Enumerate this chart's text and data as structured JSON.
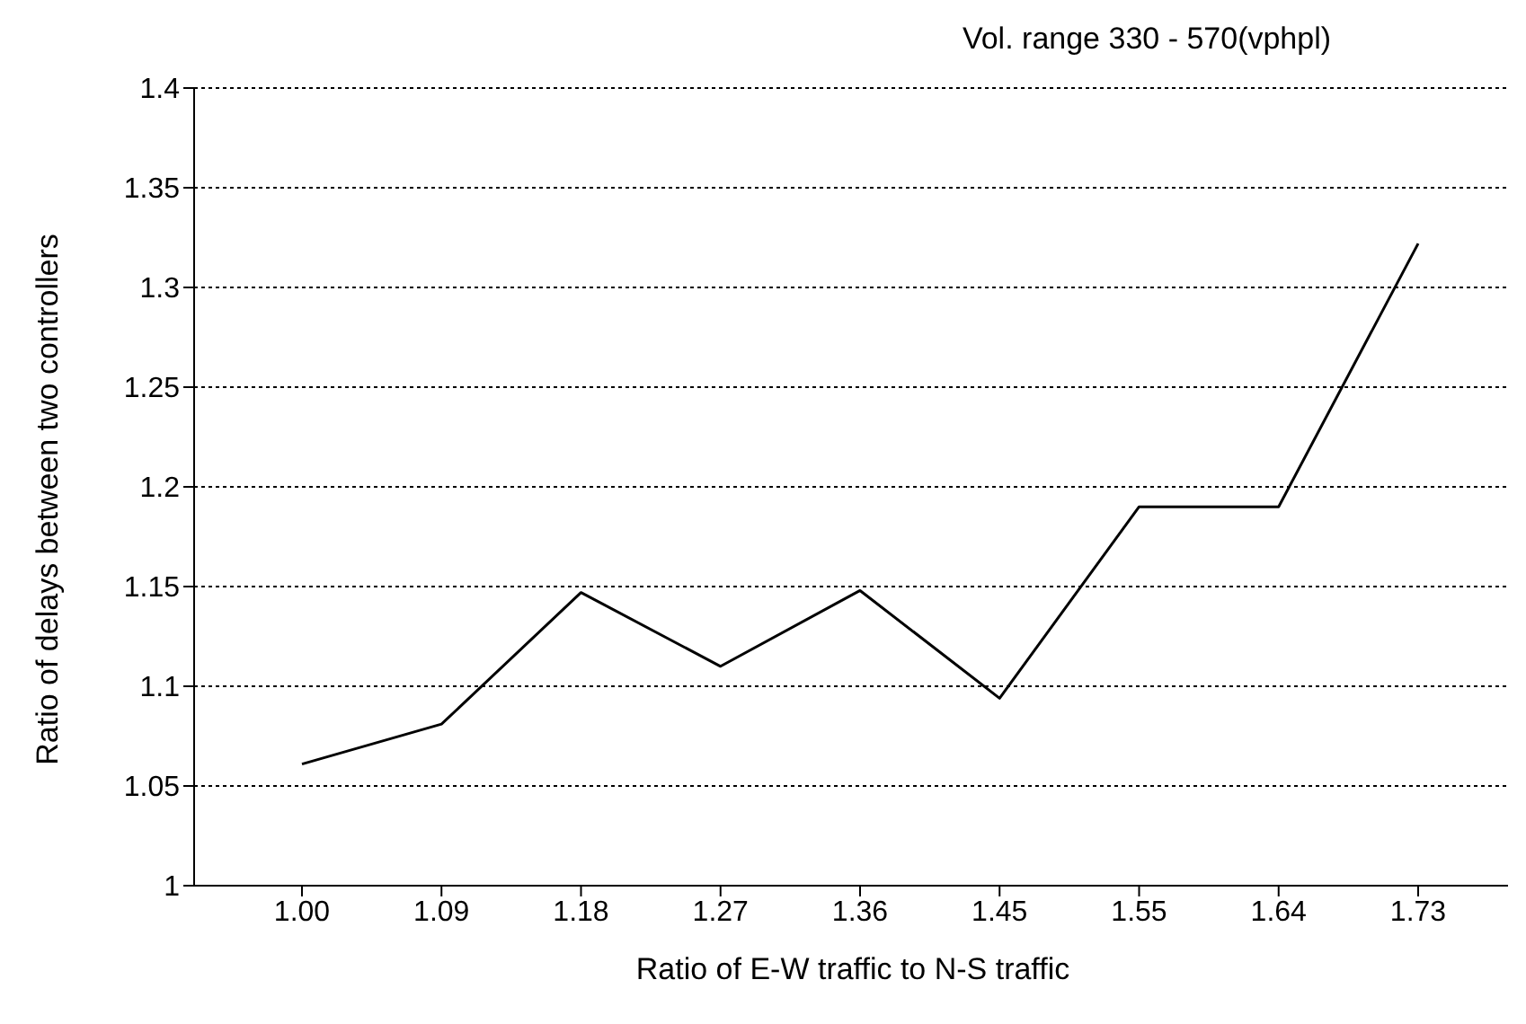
{
  "chart_data": {
    "type": "line",
    "title": "Vol. range 330 - 570(vphpl)",
    "xlabel": "Ratio of E-W traffic to N-S traffic",
    "ylabel": "Ratio of delays between two controllers",
    "categories": [
      "1.00",
      "1.09",
      "1.18",
      "1.27",
      "1.36",
      "1.45",
      "1.55",
      "1.64",
      "1.73"
    ],
    "series": [
      {
        "color": "#000000",
        "values": [
          1.061,
          1.081,
          1.147,
          1.11,
          1.148,
          1.094,
          1.19,
          1.19,
          1.322
        ]
      }
    ],
    "ylim": [
      1,
      1.4
    ],
    "yticks": [
      1,
      1.05,
      1.1,
      1.15,
      1.2,
      1.25,
      1.3,
      1.35,
      1.4
    ],
    "grid": "y",
    "marker": "none",
    "line_style": "solid"
  }
}
